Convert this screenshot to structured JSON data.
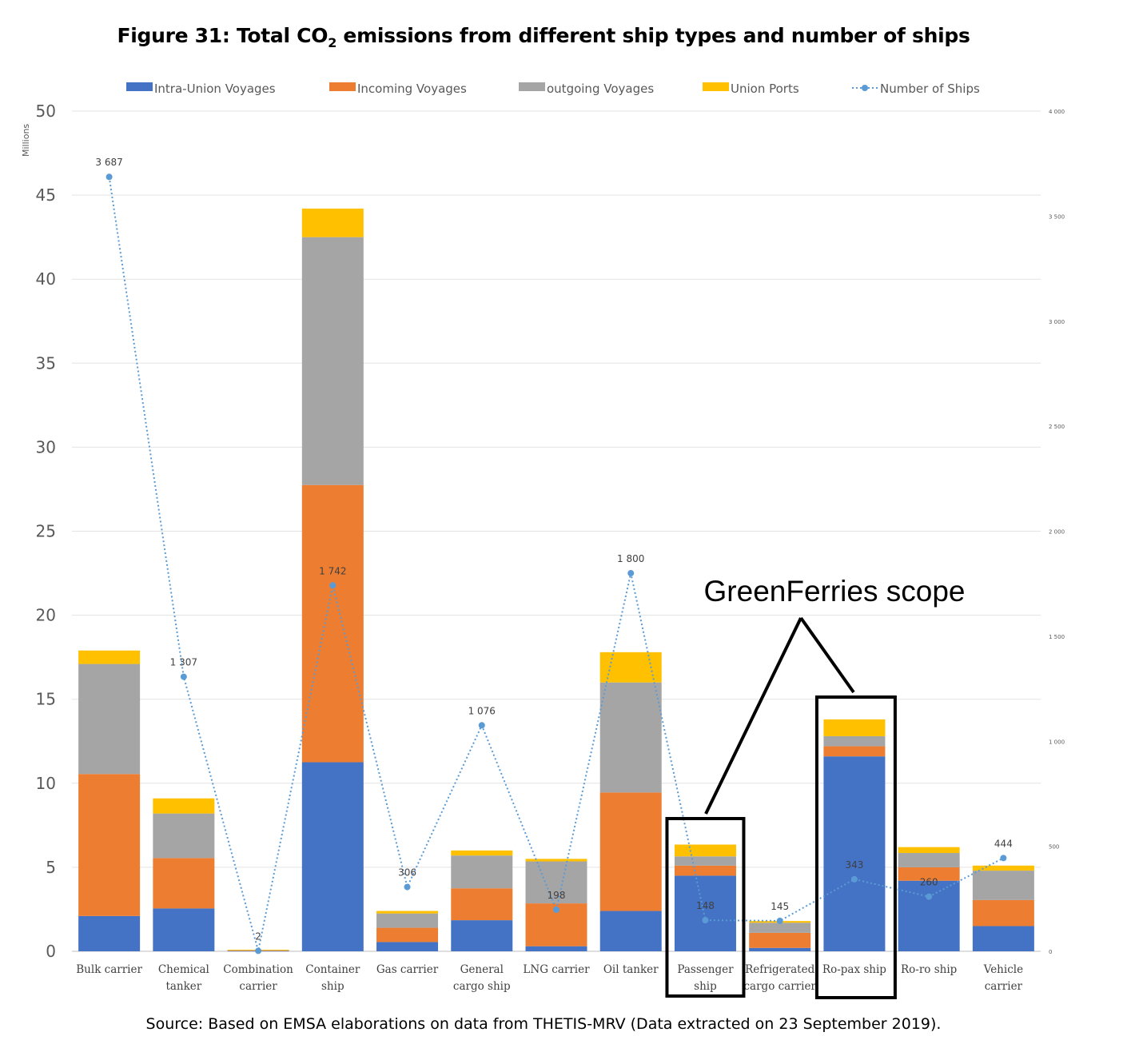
{
  "chart_data": {
    "type": "bar",
    "stacked": true,
    "title_prefix": "Figure 31: Total CO",
    "title_sub": "2",
    "title_suffix": " emissions from different ship types and number of ships",
    "y_unit_label": "Millions",
    "ylim": [
      0,
      50
    ],
    "y_ticks": [
      "0",
      "5",
      "10",
      "15",
      "20",
      "25",
      "30",
      "35",
      "40",
      "45",
      "50"
    ],
    "y2lim": [
      0,
      4000
    ],
    "y2_ticks": [
      "0",
      "500",
      "1 000",
      "1 500",
      "2 000",
      "2 500",
      "3 000",
      "3 500",
      "4 000"
    ],
    "grid": true,
    "legend_position": "top",
    "categories": [
      [
        "Bulk carrier"
      ],
      [
        "Chemical",
        "tanker"
      ],
      [
        "Combination",
        "carrier"
      ],
      [
        "Container",
        "ship"
      ],
      [
        "Gas carrier"
      ],
      [
        "General",
        "cargo ship"
      ],
      [
        "LNG carrier"
      ],
      [
        "Oil tanker"
      ],
      [
        "Passenger",
        "ship"
      ],
      [
        "Refrigerated",
        "cargo carrier"
      ],
      [
        "Ro-pax ship"
      ],
      [
        "Ro-ro ship"
      ],
      [
        "Vehicle",
        "carrier"
      ]
    ],
    "series": [
      {
        "name": "Intra-Union Voyages",
        "color": "#4472c4",
        "values": [
          2.1,
          2.55,
          0.03,
          11.25,
          0.55,
          1.85,
          0.3,
          2.4,
          4.5,
          0.2,
          11.6,
          4.2,
          1.5
        ]
      },
      {
        "name": "Incoming Voyages",
        "color": "#ed7d31",
        "values": [
          8.45,
          3.0,
          0.02,
          16.5,
          0.85,
          1.9,
          2.55,
          7.05,
          0.6,
          0.9,
          0.6,
          0.8,
          1.55
        ]
      },
      {
        "name": "outgoing Voyages",
        "color": "#a5a5a5",
        "values": [
          6.55,
          2.65,
          0.02,
          14.75,
          0.85,
          1.95,
          2.5,
          6.55,
          0.55,
          0.6,
          0.6,
          0.85,
          1.75
        ]
      },
      {
        "name": "Union Ports",
        "color": "#ffc000",
        "values": [
          0.8,
          0.9,
          0.02,
          1.7,
          0.15,
          0.3,
          0.15,
          1.8,
          0.7,
          0.1,
          1.0,
          0.35,
          0.3
        ]
      }
    ],
    "line_series": {
      "name": "Number of Ships",
      "color": "#5b9bd5",
      "axis": "secondary",
      "values": [
        3687,
        1307,
        2,
        1742,
        306,
        1076,
        198,
        1800,
        148,
        145,
        343,
        260,
        444
      ],
      "labels": [
        "3 687",
        "1 307",
        "2",
        "1 742",
        "306",
        "1 076",
        "198",
        "1 800",
        "148",
        "145",
        "343",
        "260",
        "444"
      ]
    },
    "annotation": {
      "text": "GreenFerries scope",
      "highlighted_categories": [
        "Passenger ship",
        "Ro-pax ship"
      ]
    }
  },
  "source_note": "Source: Based on EMSA elaborations on data from THETIS-MRV (Data extracted on 23 September 2019)."
}
